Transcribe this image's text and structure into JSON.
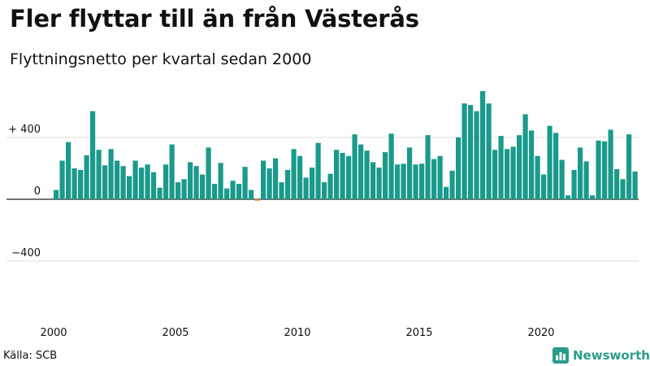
{
  "header": {
    "title": "Fler flyttar till än från Västerås",
    "subtitle": "Flyttningsnetto per kvartal sedan 2000"
  },
  "footer": {
    "source": "Källa: SCB",
    "brand": "Newsworthy"
  },
  "colors": {
    "positive": "#1a9a8a",
    "negative": "#e39b1b",
    "grid": "#dddddd",
    "brand": "#2a9d8a"
  },
  "chart_data": {
    "type": "bar",
    "title": "Fler flyttar till än från Västerås",
    "subtitle": "Flyttningsnetto per kvartal sedan 2000",
    "xlabel": "",
    "ylabel": "",
    "ylim": [
      -620,
      720
    ],
    "grid": true,
    "legend": "none",
    "y_ticks": [
      {
        "value": 400,
        "label": "+ 400"
      },
      {
        "value": 0,
        "label": "0"
      },
      {
        "value": -400,
        "label": "−400"
      }
    ],
    "x_ticks": [
      "2000",
      "2005",
      "2010",
      "2015",
      "2020"
    ],
    "start_year": 2000,
    "values": [
      60,
      250,
      370,
      200,
      190,
      285,
      570,
      320,
      220,
      325,
      250,
      215,
      150,
      250,
      205,
      225,
      175,
      75,
      225,
      355,
      110,
      130,
      240,
      215,
      160,
      335,
      100,
      235,
      70,
      120,
      100,
      210,
      60,
      -10,
      250,
      200,
      265,
      110,
      190,
      325,
      280,
      140,
      205,
      365,
      110,
      165,
      320,
      300,
      280,
      420,
      355,
      315,
      240,
      205,
      305,
      425,
      225,
      230,
      335,
      225,
      230,
      415,
      260,
      280,
      80,
      185,
      400,
      620,
      610,
      570,
      700,
      620,
      320,
      410,
      325,
      340,
      415,
      550,
      445,
      280,
      160,
      475,
      430,
      255,
      25,
      190,
      335,
      245,
      25,
      380,
      375,
      450,
      195,
      130,
      420,
      180
    ]
  }
}
